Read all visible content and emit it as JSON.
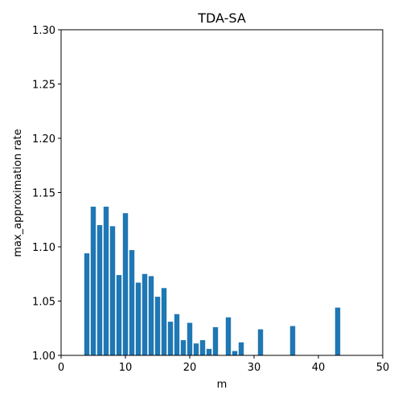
{
  "chart_data": {
    "type": "bar",
    "title": "TDA-SA",
    "xlabel": "m",
    "ylabel": "max_approximation rate",
    "xlim": [
      0,
      50
    ],
    "ylim": [
      1.0,
      1.3
    ],
    "xticks": [
      0,
      10,
      20,
      30,
      40,
      50
    ],
    "xtick_labels": [
      "0",
      "10",
      "20",
      "30",
      "40",
      "50"
    ],
    "yticks": [
      1.0,
      1.05,
      1.1,
      1.15,
      1.2,
      1.25,
      1.3
    ],
    "ytick_labels": [
      "1.00",
      "1.05",
      "1.10",
      "1.15",
      "1.20",
      "1.25",
      "1.30"
    ],
    "grid": false,
    "bar_color": "#1f77b4",
    "x": [
      4,
      5,
      6,
      7,
      8,
      9,
      10,
      11,
      12,
      13,
      14,
      15,
      16,
      17,
      18,
      19,
      20,
      21,
      22,
      23,
      24,
      26,
      27,
      28,
      31,
      36,
      43
    ],
    "values": [
      1.094,
      1.137,
      1.12,
      1.137,
      1.119,
      1.074,
      1.131,
      1.097,
      1.067,
      1.075,
      1.073,
      1.054,
      1.062,
      1.031,
      1.038,
      1.014,
      1.03,
      1.011,
      1.014,
      1.006,
      1.026,
      1.035,
      1.004,
      1.012,
      1.024,
      1.027,
      1.044
    ]
  }
}
